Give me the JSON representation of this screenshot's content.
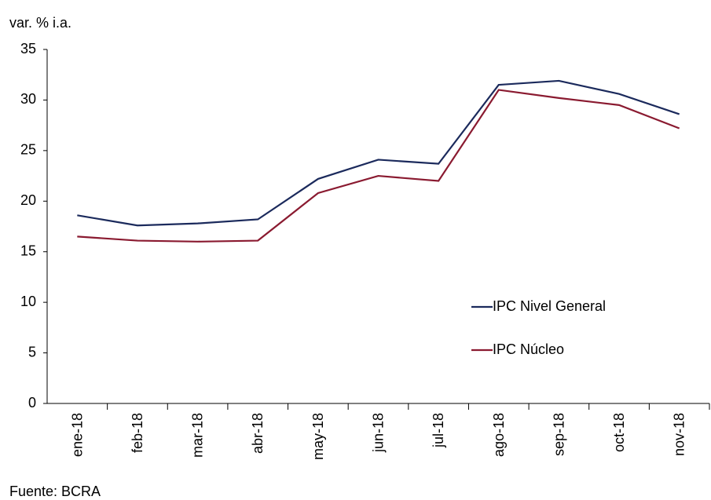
{
  "chart_data": {
    "type": "line",
    "ylabel": "var. % i.a.",
    "source": "Fuente: BCRA",
    "categories": [
      "ene-18",
      "feb-18",
      "mar-18",
      "abr-18",
      "may-18",
      "jun-18",
      "jul-18",
      "ago-18",
      "sep-18",
      "oct-18",
      "nov-18"
    ],
    "series": [
      {
        "name": "IPC Nivel General",
        "color": "#1b2a5c",
        "values": [
          18.6,
          17.6,
          17.8,
          18.2,
          22.2,
          24.1,
          23.7,
          31.5,
          31.9,
          30.6,
          28.6
        ]
      },
      {
        "name": "IPC Núcleo",
        "color": "#8a1a30",
        "values": [
          16.5,
          16.1,
          16.0,
          16.1,
          20.8,
          22.5,
          22.0,
          31.0,
          30.2,
          29.5,
          27.2
        ]
      }
    ],
    "ylim": [
      0,
      35
    ],
    "yticks": [
      0,
      5,
      10,
      15,
      20,
      25,
      30,
      35
    ],
    "grid": false,
    "legend": "right"
  }
}
